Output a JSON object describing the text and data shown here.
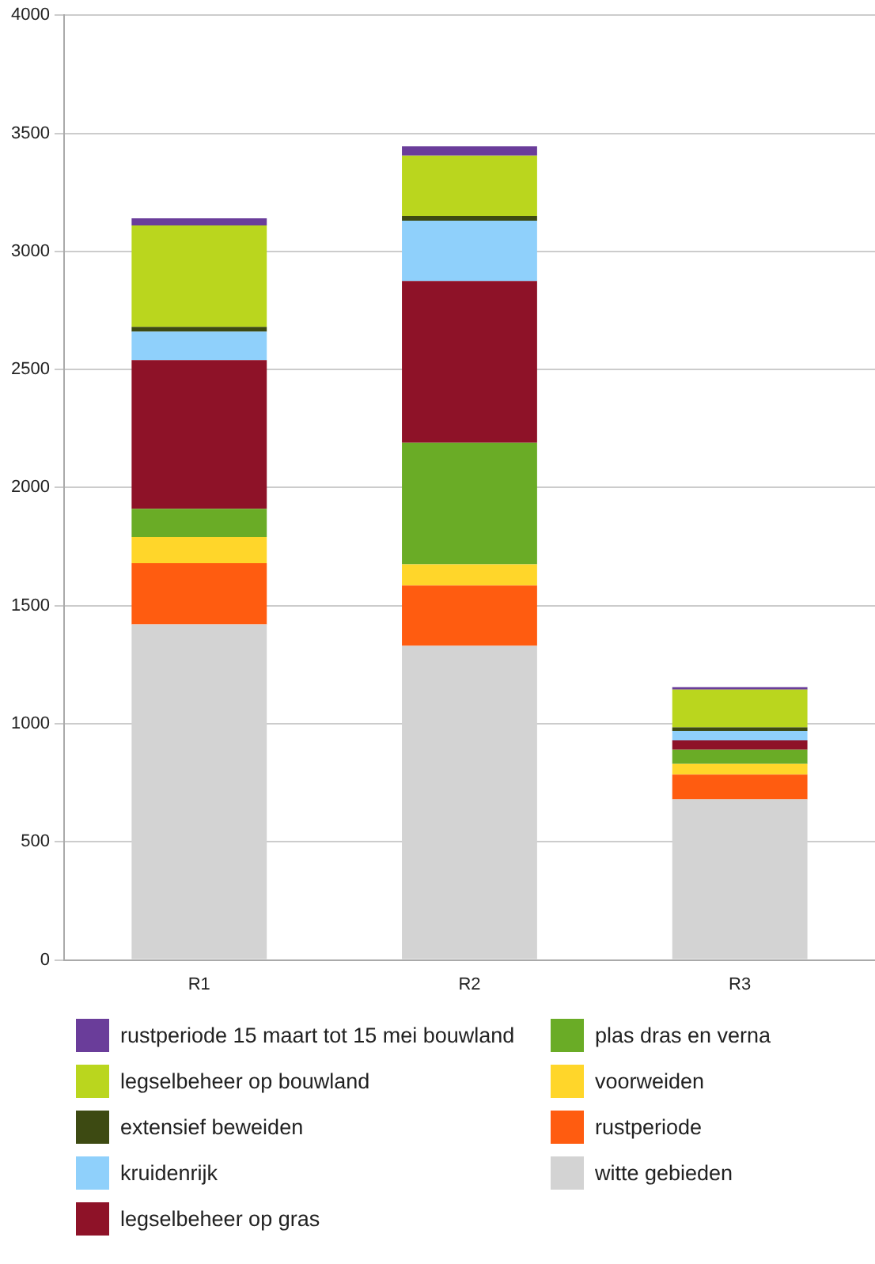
{
  "chart_data": {
    "type": "bar",
    "stacked": true,
    "categories": [
      "R1",
      "R2",
      "R3"
    ],
    "ylim": [
      0,
      4000
    ],
    "yticks": [
      0,
      500,
      1000,
      1500,
      2000,
      2500,
      3000,
      3500,
      4000
    ],
    "grid": "y",
    "legend": "bottom",
    "series": [
      {
        "name": "witte gebieden",
        "color": "#d3d3d3",
        "values": [
          1420,
          1330,
          680
        ]
      },
      {
        "name": "rustperiode",
        "color": "#ff5c10",
        "values": [
          260,
          255,
          105
        ]
      },
      {
        "name": "voorweiden",
        "color": "#ffd62a",
        "values": [
          110,
          90,
          45
        ]
      },
      {
        "name": "plas dras en verna",
        "color": "#6aac26",
        "values": [
          120,
          515,
          60
        ]
      },
      {
        "name": "legselbeheer op gras",
        "color": "#8e1228",
        "values": [
          630,
          685,
          40
        ]
      },
      {
        "name": "kruidenrijk",
        "color": "#8fd0fb",
        "values": [
          120,
          255,
          40
        ]
      },
      {
        "name": "extensief beweiden",
        "color": "#3d4a12",
        "values": [
          20,
          20,
          15
        ]
      },
      {
        "name": "legselbeheer op bouwland",
        "color": "#bad61e",
        "values": [
          430,
          255,
          160
        ]
      },
      {
        "name": "rustperiode 15 maart tot 15 mei bouwland",
        "color": "#6a3d9a",
        "values": [
          30,
          40,
          10
        ]
      }
    ]
  }
}
